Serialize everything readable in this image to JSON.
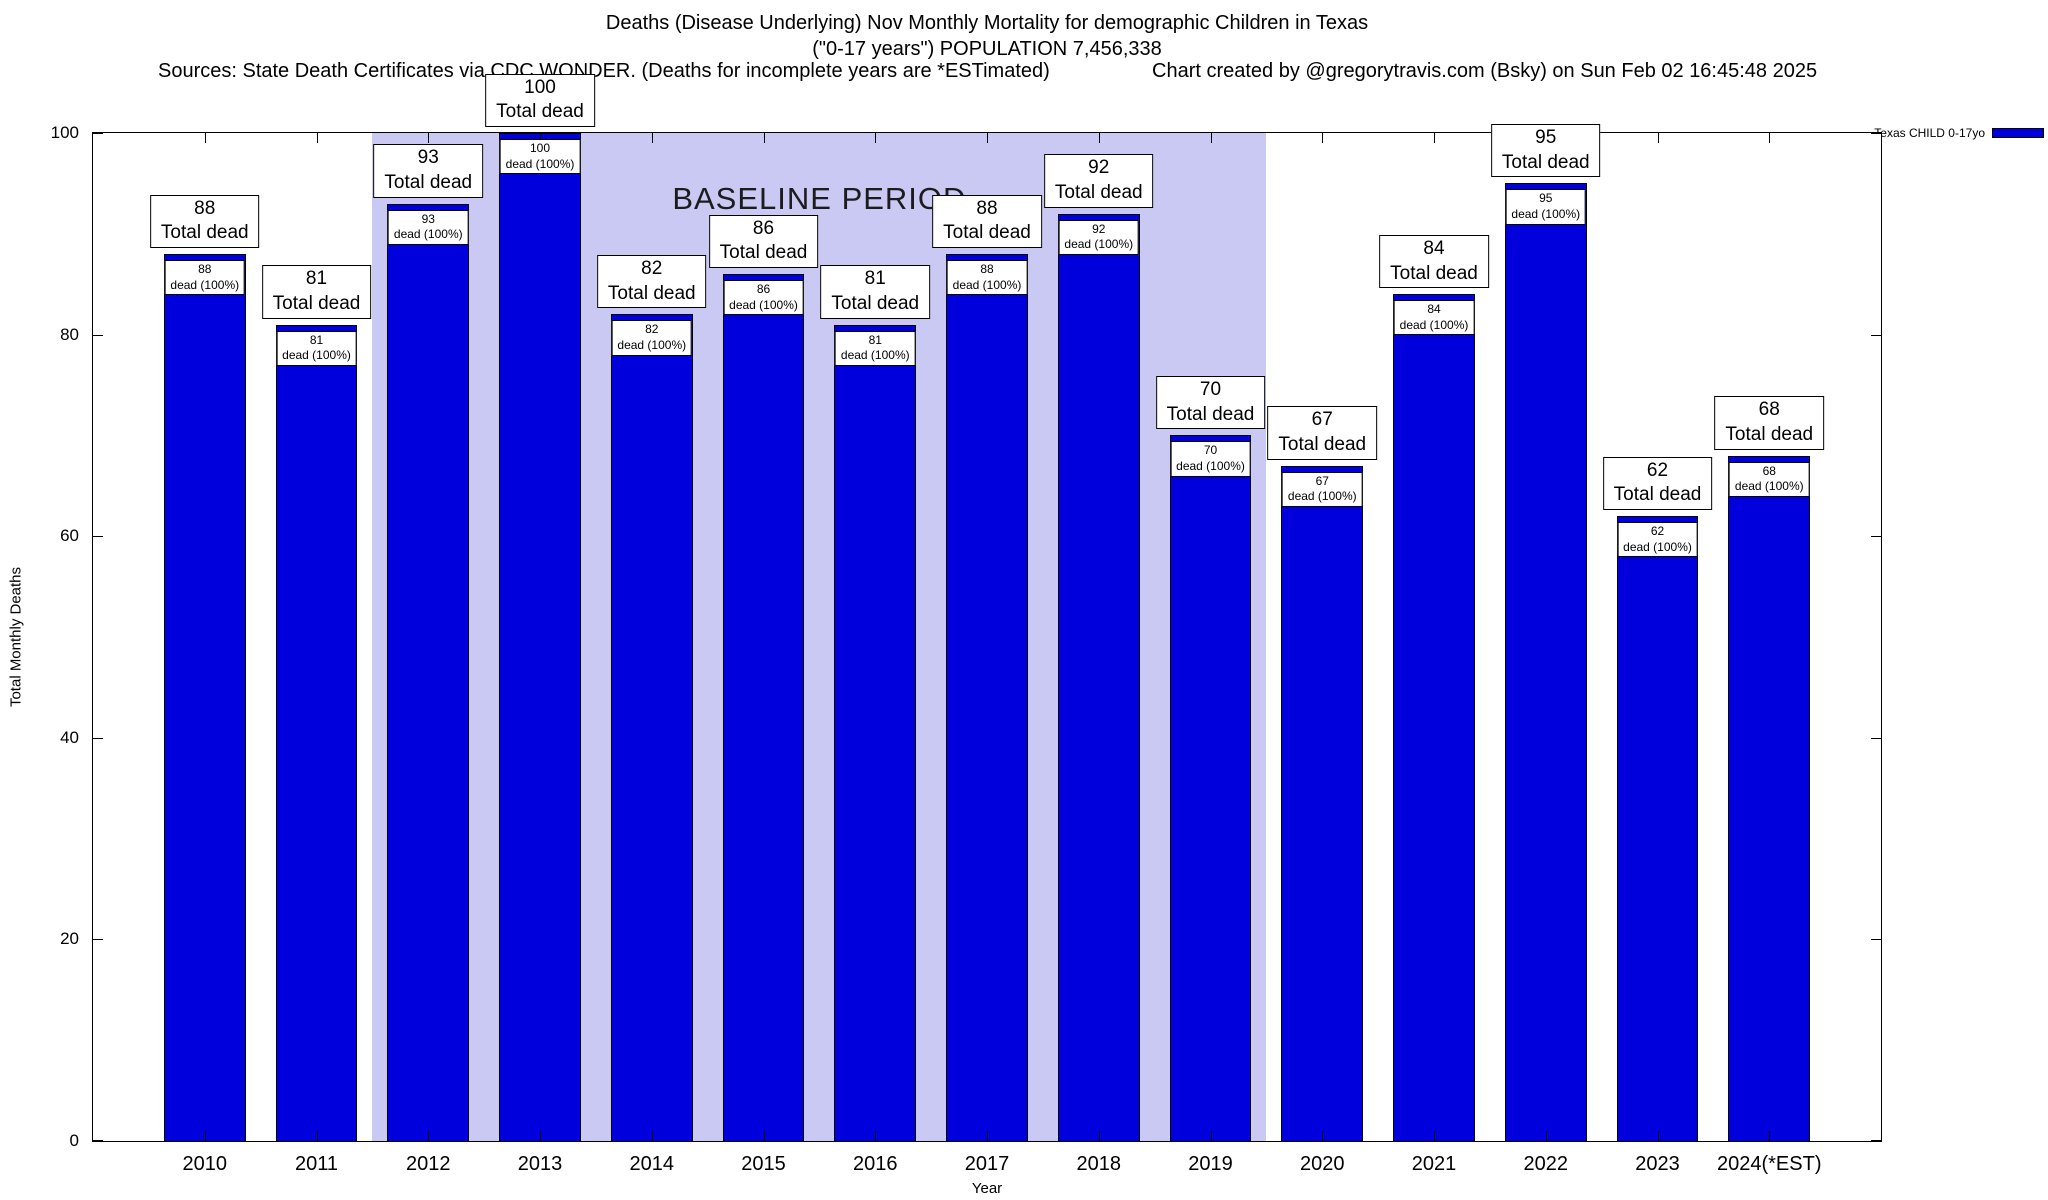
{
  "accent_colors": {
    "bar": "#0000DD",
    "baseline_band": "#C9C9F4",
    "background": "#FFFFFF"
  },
  "header": {
    "title_line1": "Deaths (Disease Underlying) Nov Monthly Mortality for demographic Children in Texas",
    "title_line2": "(\"0-17 years\") POPULATION 7,456,338",
    "sources": "Sources: State Death Certificates via CDC WONDER. (Deaths for incomplete years are *ESTimated)",
    "credit": "Chart created by @gregorytravis.com (Bsky) on Sun Feb 02 16:45:48 2025"
  },
  "legend": {
    "label": "Texas CHILD 0-17yo",
    "swatch_color": "#0000DD"
  },
  "chart_data": {
    "type": "bar",
    "title": "Deaths (Disease Underlying) Nov Monthly Mortality for demographic Children in Texas",
    "subtitle": "(\"0-17 years\") POPULATION 7,456,338",
    "xlabel": "Year",
    "ylabel": "Total Monthly Deaths",
    "ylim": [
      0,
      100
    ],
    "yticks": [
      0,
      20,
      40,
      60,
      80,
      100
    ],
    "categories": [
      "2010",
      "2011",
      "2012",
      "2013",
      "2014",
      "2015",
      "2016",
      "2017",
      "2018",
      "2019",
      "2020",
      "2021",
      "2022",
      "2023",
      "2024(*EST)"
    ],
    "values": [
      88,
      81,
      93,
      100,
      82,
      86,
      81,
      88,
      92,
      70,
      67,
      84,
      95,
      62,
      68
    ],
    "series_name": "Texas CHILD 0-17yo",
    "bar_top_label_suffix": "Total dead",
    "bar_inner_label_suffix": "dead (100%)",
    "grid": false,
    "legend_position": "top-right",
    "baseline_band": {
      "label": "BASELINE PERIOD",
      "x_start_index": 2,
      "x_end_index": 9
    }
  }
}
